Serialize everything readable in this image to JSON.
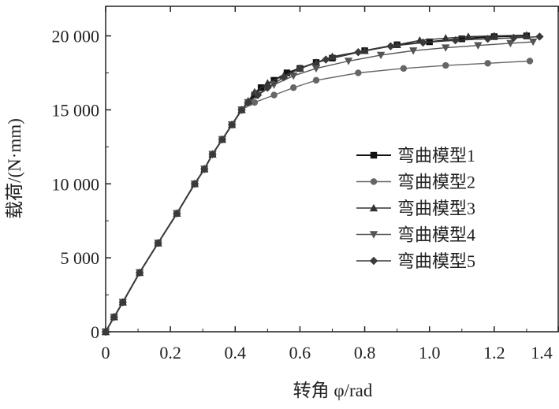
{
  "chart_data": {
    "type": "line",
    "xlabel": "转角 φ/rad",
    "ylabel": "载荷/(N·mm)",
    "xlim": [
      0,
      1.4
    ],
    "ylim": [
      0,
      22000
    ],
    "x_ticks": [
      0,
      0.2,
      0.4,
      0.6,
      0.8,
      1.0,
      1.2,
      1.4
    ],
    "x_tick_labels": [
      "0",
      "0.2",
      "0.4",
      "0.6",
      "0.8",
      "1.0",
      "1.2",
      "1.4"
    ],
    "y_ticks": [
      0,
      5000,
      10000,
      15000,
      20000
    ],
    "y_tick_labels": [
      "0",
      "5 000",
      "10 000",
      "15 000",
      "20 000"
    ],
    "grid": false,
    "legend_position": "right",
    "series": [
      {
        "name": "弯曲模型1",
        "marker": "square",
        "color": "#111111",
        "x": [
          0,
          0.026,
          0.053,
          0.105,
          0.162,
          0.22,
          0.275,
          0.305,
          0.33,
          0.36,
          0.39,
          0.42,
          0.44,
          0.46,
          0.48,
          0.52,
          0.56,
          0.6,
          0.65,
          0.7,
          0.8,
          0.9,
          1.0,
          1.1,
          1.2,
          1.3
        ],
        "y": [
          0,
          1000,
          2000,
          4000,
          6000,
          8000,
          10000,
          11000,
          12000,
          13000,
          14000,
          15000,
          15500,
          16000,
          16500,
          17000,
          17500,
          17800,
          18200,
          18500,
          19000,
          19400,
          19600,
          19800,
          19950,
          20000
        ]
      },
      {
        "name": "弯曲模型2",
        "marker": "circle",
        "color": "#666666",
        "x": [
          0,
          0.026,
          0.053,
          0.105,
          0.162,
          0.22,
          0.275,
          0.305,
          0.33,
          0.36,
          0.39,
          0.42,
          0.46,
          0.52,
          0.58,
          0.65,
          0.78,
          0.92,
          1.05,
          1.18,
          1.31
        ],
        "y": [
          0,
          1000,
          2000,
          4000,
          6000,
          8000,
          10000,
          11000,
          12000,
          13000,
          14000,
          15000,
          15500,
          16000,
          16500,
          17000,
          17500,
          17800,
          18000,
          18150,
          18300
        ]
      },
      {
        "name": "弯曲模型3",
        "marker": "triangle-up",
        "color": "#333333",
        "x": [
          0,
          0.026,
          0.053,
          0.105,
          0.162,
          0.22,
          0.275,
          0.305,
          0.33,
          0.36,
          0.39,
          0.42,
          0.44,
          0.46,
          0.5,
          0.55,
          0.6,
          0.65,
          0.7,
          0.8,
          0.9,
          0.97,
          1.05,
          1.12,
          1.2,
          1.3
        ],
        "y": [
          0,
          1000,
          2000,
          4000,
          6000,
          8000,
          10000,
          11000,
          12000,
          13000,
          14000,
          15000,
          15600,
          16200,
          16800,
          17300,
          17800,
          18200,
          18600,
          19000,
          19400,
          19700,
          19850,
          19950,
          20000,
          20050
        ]
      },
      {
        "name": "弯曲模型4",
        "marker": "triangle-down",
        "color": "#555555",
        "x": [
          0,
          0.026,
          0.053,
          0.105,
          0.162,
          0.22,
          0.275,
          0.305,
          0.33,
          0.36,
          0.39,
          0.42,
          0.44,
          0.47,
          0.52,
          0.58,
          0.65,
          0.75,
          0.85,
          0.95,
          1.05,
          1.15,
          1.25,
          1.32
        ],
        "y": [
          0,
          1000,
          2000,
          4000,
          6000,
          8000,
          10000,
          11000,
          12000,
          13000,
          14000,
          15000,
          15500,
          16000,
          16700,
          17300,
          17800,
          18300,
          18700,
          19000,
          19200,
          19350,
          19500,
          19600
        ]
      },
      {
        "name": "弯曲模型5",
        "marker": "diamond",
        "color": "#3a3a3a",
        "x": [
          0,
          0.026,
          0.053,
          0.105,
          0.162,
          0.22,
          0.275,
          0.305,
          0.33,
          0.36,
          0.39,
          0.42,
          0.44,
          0.47,
          0.5,
          0.55,
          0.6,
          0.68,
          0.78,
          0.88,
          0.98,
          1.08,
          1.18,
          1.26,
          1.34
        ],
        "y": [
          0,
          1000,
          2000,
          4000,
          6000,
          8000,
          10000,
          11000,
          12000,
          13000,
          14000,
          15000,
          15500,
          16000,
          16500,
          17200,
          17800,
          18400,
          18900,
          19300,
          19550,
          19700,
          19800,
          19870,
          19950
        ]
      }
    ]
  }
}
